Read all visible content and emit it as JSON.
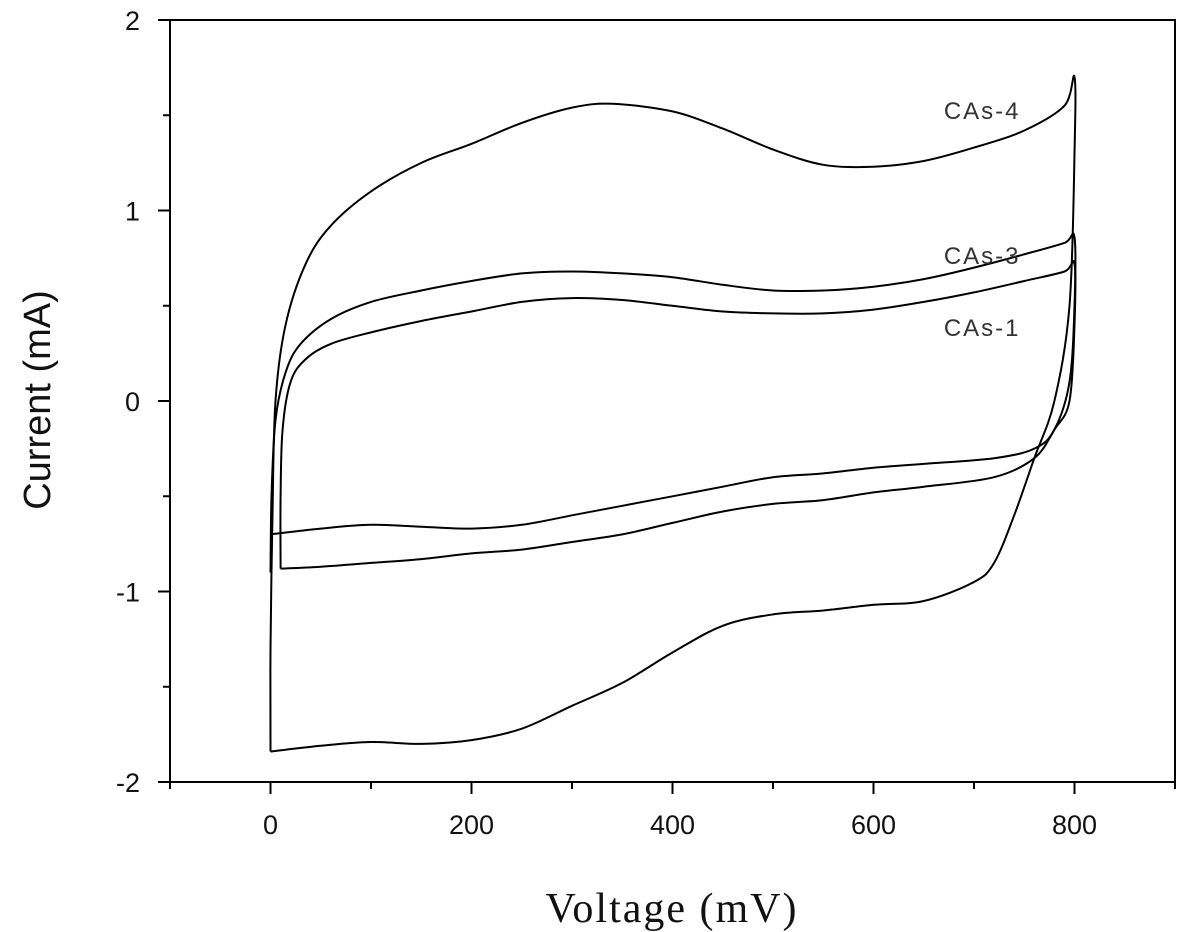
{
  "chart_data": {
    "type": "line",
    "title": "",
    "xlabel": "Voltage (mV)",
    "ylabel": "Current (mA)",
    "xlim": [
      -100,
      900
    ],
    "ylim": [
      -2,
      2
    ],
    "x_ticks": [
      "0",
      "200",
      "400",
      "600",
      "800"
    ],
    "y_ticks": [
      "2",
      "1",
      "0",
      "-1",
      "-2"
    ],
    "grid": false,
    "legend": "none",
    "series": [
      {
        "name": "CAs-4",
        "points": [
          [
            0,
            -1.84
          ],
          [
            0,
            -1.3
          ],
          [
            2,
            -0.6
          ],
          [
            5,
            0.0
          ],
          [
            15,
            0.4
          ],
          [
            35,
            0.72
          ],
          [
            60,
            0.92
          ],
          [
            100,
            1.1
          ],
          [
            150,
            1.25
          ],
          [
            200,
            1.35
          ],
          [
            250,
            1.46
          ],
          [
            300,
            1.54
          ],
          [
            340,
            1.56
          ],
          [
            400,
            1.52
          ],
          [
            450,
            1.43
          ],
          [
            500,
            1.32
          ],
          [
            550,
            1.24
          ],
          [
            600,
            1.23
          ],
          [
            650,
            1.26
          ],
          [
            700,
            1.33
          ],
          [
            750,
            1.42
          ],
          [
            790,
            1.55
          ],
          [
            800,
            1.7
          ],
          [
            800,
            1.3
          ],
          [
            795,
            0.5
          ],
          [
            780,
            0.0
          ],
          [
            760,
            -0.3
          ],
          [
            740,
            -0.6
          ],
          [
            720,
            -0.85
          ],
          [
            700,
            -0.95
          ],
          [
            650,
            -1.05
          ],
          [
            600,
            -1.07
          ],
          [
            550,
            -1.1
          ],
          [
            500,
            -1.12
          ],
          [
            450,
            -1.18
          ],
          [
            400,
            -1.32
          ],
          [
            350,
            -1.48
          ],
          [
            300,
            -1.6
          ],
          [
            250,
            -1.72
          ],
          [
            200,
            -1.78
          ],
          [
            150,
            -1.8
          ],
          [
            100,
            -1.79
          ],
          [
            50,
            -1.81
          ],
          [
            0,
            -1.84
          ]
        ]
      },
      {
        "name": "CAs-3",
        "points": [
          [
            0,
            -0.9
          ],
          [
            1,
            -0.5
          ],
          [
            5,
            -0.1
          ],
          [
            15,
            0.15
          ],
          [
            30,
            0.3
          ],
          [
            60,
            0.43
          ],
          [
            100,
            0.52
          ],
          [
            150,
            0.58
          ],
          [
            200,
            0.63
          ],
          [
            250,
            0.67
          ],
          [
            300,
            0.68
          ],
          [
            350,
            0.67
          ],
          [
            400,
            0.65
          ],
          [
            450,
            0.61
          ],
          [
            500,
            0.58
          ],
          [
            550,
            0.58
          ],
          [
            600,
            0.6
          ],
          [
            650,
            0.64
          ],
          [
            700,
            0.7
          ],
          [
            750,
            0.77
          ],
          [
            790,
            0.83
          ],
          [
            800,
            0.86
          ],
          [
            800,
            0.5
          ],
          [
            795,
            0.1
          ],
          [
            780,
            -0.15
          ],
          [
            760,
            -0.25
          ],
          [
            720,
            -0.3
          ],
          [
            650,
            -0.33
          ],
          [
            600,
            -0.35
          ],
          [
            550,
            -0.38
          ],
          [
            500,
            -0.4
          ],
          [
            450,
            -0.45
          ],
          [
            400,
            -0.5
          ],
          [
            350,
            -0.55
          ],
          [
            300,
            -0.6
          ],
          [
            250,
            -0.65
          ],
          [
            200,
            -0.67
          ],
          [
            150,
            -0.66
          ],
          [
            100,
            -0.65
          ],
          [
            50,
            -0.67
          ],
          [
            0,
            -0.7
          ]
        ]
      },
      {
        "name": "CAs-1",
        "points": [
          [
            10,
            -0.88
          ],
          [
            10,
            -0.5
          ],
          [
            12,
            -0.15
          ],
          [
            20,
            0.1
          ],
          [
            35,
            0.22
          ],
          [
            60,
            0.3
          ],
          [
            100,
            0.36
          ],
          [
            150,
            0.42
          ],
          [
            200,
            0.47
          ],
          [
            250,
            0.52
          ],
          [
            300,
            0.54
          ],
          [
            350,
            0.53
          ],
          [
            400,
            0.5
          ],
          [
            450,
            0.47
          ],
          [
            500,
            0.46
          ],
          [
            550,
            0.46
          ],
          [
            600,
            0.48
          ],
          [
            650,
            0.52
          ],
          [
            700,
            0.57
          ],
          [
            750,
            0.63
          ],
          [
            790,
            0.68
          ],
          [
            800,
            0.72
          ],
          [
            800,
            0.4
          ],
          [
            795,
            0.0
          ],
          [
            780,
            -0.15
          ],
          [
            760,
            -0.3
          ],
          [
            720,
            -0.4
          ],
          [
            650,
            -0.45
          ],
          [
            600,
            -0.48
          ],
          [
            550,
            -0.52
          ],
          [
            500,
            -0.54
          ],
          [
            450,
            -0.58
          ],
          [
            400,
            -0.64
          ],
          [
            350,
            -0.7
          ],
          [
            300,
            -0.74
          ],
          [
            250,
            -0.78
          ],
          [
            200,
            -0.8
          ],
          [
            150,
            -0.83
          ],
          [
            100,
            -0.85
          ],
          [
            50,
            -0.87
          ],
          [
            10,
            -0.88
          ]
        ]
      }
    ],
    "annotations": [
      {
        "text": "CAs-4",
        "x": 670,
        "y": 1.48
      },
      {
        "text": "CAs-3",
        "x": 670,
        "y": 0.72
      },
      {
        "text": "CAs-1",
        "x": 670,
        "y": 0.34
      }
    ]
  }
}
